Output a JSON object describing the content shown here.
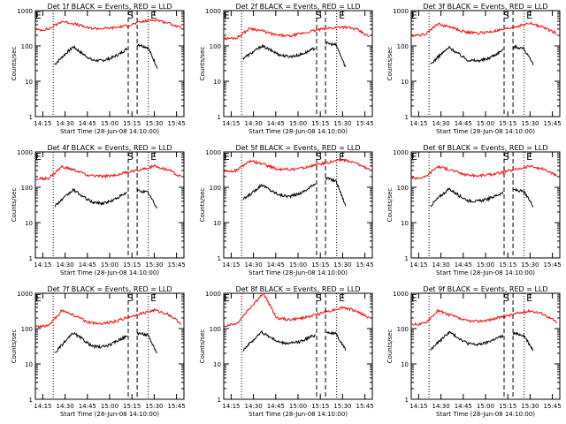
{
  "figure": {
    "title_template": "Det {det} BLACK = Events, RED = LLD",
    "xlabel": "Start Time (28-Jun-08 14:10:00)",
    "ylabel": "Counts/sec",
    "x_ticks": [
      "14:15",
      "14:30",
      "14:45",
      "15:00",
      "15:15",
      "15:30",
      "15:45"
    ],
    "y_ticks": [
      "1",
      "10",
      "100",
      "1000"
    ],
    "markers": {
      "start_label": "S",
      "end_label": "E"
    },
    "colors": {
      "events": "#000000",
      "lld": "#ff0000",
      "axis": "#000000"
    }
  },
  "chart_data": [
    {
      "type": "line",
      "title": "Det 1f BLACK = Events, RED = LLD",
      "xlabel": "Start Time (28-Jun-08 14:10:00)",
      "ylabel": "Counts/sec",
      "xlim": [
        14.15,
        15.5
      ],
      "ylim": [
        1,
        1000
      ],
      "yscale": "log",
      "series": [
        {
          "name": "Events",
          "color": "#000000",
          "base": [
            30,
            55,
            95,
            60,
            40,
            38,
            45,
            60,
            95,
            110,
            90,
            25
          ]
        },
        {
          "name": "LLD",
          "color": "#ff0000",
          "base": [
            280,
            300,
            500,
            420,
            320,
            310,
            330,
            380,
            480,
            560,
            450,
            330
          ]
        }
      ],
      "markers": [
        {
          "label": "E",
          "x": 14.17
        },
        {
          "label": "S",
          "x": 15.22
        },
        {
          "label": "E",
          "x": 15.32
        }
      ]
    },
    {
      "type": "line",
      "title": "Det 2f BLACK = Events, RED = LLD",
      "xlabel": "Start Time (28-Jun-08 14:10:00)",
      "ylabel": "Counts/sec",
      "xlim": [
        14.15,
        15.5
      ],
      "ylim": [
        1,
        1000
      ],
      "yscale": "log",
      "series": [
        {
          "name": "Events",
          "color": "#000000",
          "base": [
            45,
            65,
            100,
            75,
            55,
            50,
            55,
            70,
            95,
            120,
            105,
            25
          ]
        },
        {
          "name": "LLD",
          "color": "#ff0000",
          "base": [
            160,
            170,
            320,
            260,
            200,
            190,
            230,
            280,
            320,
            350,
            300,
            180
          ]
        }
      ],
      "markers": [
        {
          "label": "E",
          "x": 14.17
        },
        {
          "label": "S",
          "x": 15.22
        },
        {
          "label": "E",
          "x": 15.32
        }
      ]
    },
    {
      "type": "line",
      "title": "Det 3f BLACK = Events, RED = LLD",
      "xlabel": "Start Time (28-Jun-08 14:10:00)",
      "ylabel": "Counts/sec",
      "xlim": [
        14.15,
        15.5
      ],
      "ylim": [
        1,
        1000
      ],
      "yscale": "log",
      "series": [
        {
          "name": "Events",
          "color": "#000000",
          "base": [
            30,
            55,
            90,
            60,
            40,
            38,
            42,
            58,
            85,
            95,
            85,
            30
          ]
        },
        {
          "name": "LLD",
          "color": "#ff0000",
          "base": [
            200,
            210,
            420,
            340,
            250,
            230,
            250,
            290,
            360,
            440,
            330,
            230
          ]
        }
      ],
      "markers": [
        {
          "label": "E",
          "x": 14.17
        },
        {
          "label": "S",
          "x": 15.22
        },
        {
          "label": "E",
          "x": 15.32
        }
      ]
    },
    {
      "type": "line",
      "title": "Det 4f BLACK = Events, RED = LLD",
      "xlabel": "Start Time (28-Jun-08 14:10:00)",
      "ylabel": "Counts/sec",
      "xlim": [
        14.15,
        15.5
      ],
      "ylim": [
        1,
        1000
      ],
      "yscale": "log",
      "series": [
        {
          "name": "Events",
          "color": "#000000",
          "base": [
            30,
            50,
            85,
            55,
            38,
            35,
            40,
            55,
            75,
            80,
            72,
            25
          ]
        },
        {
          "name": "LLD",
          "color": "#ff0000",
          "base": [
            170,
            180,
            380,
            300,
            220,
            200,
            220,
            270,
            320,
            400,
            320,
            200
          ]
        }
      ],
      "markers": [
        {
          "label": "E",
          "x": 14.17
        },
        {
          "label": "S",
          "x": 15.22
        },
        {
          "label": "E",
          "x": 15.32
        }
      ]
    },
    {
      "type": "line",
      "title": "Det 5f BLACK = Events, RED = LLD",
      "xlabel": "Start Time (28-Jun-08 14:10:00)",
      "ylabel": "Counts/sec",
      "xlim": [
        14.15,
        15.5
      ],
      "ylim": [
        1,
        1000
      ],
      "yscale": "log",
      "series": [
        {
          "name": "Events",
          "color": "#000000",
          "base": [
            45,
            70,
            120,
            80,
            60,
            55,
            65,
            90,
            150,
            180,
            150,
            30
          ]
        },
        {
          "name": "LLD",
          "color": "#ff0000",
          "base": [
            280,
            300,
            560,
            450,
            330,
            320,
            350,
            430,
            520,
            600,
            480,
            330
          ]
        }
      ],
      "markers": [
        {
          "label": "E",
          "x": 14.17
        },
        {
          "label": "S",
          "x": 15.22
        },
        {
          "label": "E",
          "x": 15.32
        }
      ]
    },
    {
      "type": "line",
      "title": "Det 6f BLACK = Events, RED = LLD",
      "xlabel": "Start Time (28-Jun-08 14:10:00)",
      "ylabel": "Counts/sec",
      "xlim": [
        14.15,
        15.5
      ],
      "ylim": [
        1,
        1000
      ],
      "yscale": "log",
      "series": [
        {
          "name": "Events",
          "color": "#000000",
          "base": [
            30,
            55,
            90,
            60,
            42,
            40,
            45,
            58,
            75,
            85,
            75,
            30
          ]
        },
        {
          "name": "LLD",
          "color": "#ff0000",
          "base": [
            180,
            190,
            390,
            310,
            230,
            210,
            230,
            270,
            330,
            400,
            320,
            210
          ]
        }
      ],
      "markers": [
        {
          "label": "E",
          "x": 14.17
        },
        {
          "label": "S",
          "x": 15.22
        },
        {
          "label": "E",
          "x": 15.32
        }
      ]
    },
    {
      "type": "line",
      "title": "Det 7f BLACK = Events, RED = LLD",
      "xlabel": "Start Time (28-Jun-08 14:10:00)",
      "ylabel": "Counts/sec",
      "xlim": [
        14.15,
        15.5
      ],
      "ylim": [
        1,
        1000
      ],
      "yscale": "log",
      "series": [
        {
          "name": "Events",
          "color": "#000000",
          "base": [
            20,
            40,
            75,
            50,
            32,
            30,
            35,
            50,
            65,
            75,
            65,
            20
          ]
        },
        {
          "name": "LLD",
          "color": "#ff0000",
          "base": [
            110,
            120,
            330,
            230,
            150,
            140,
            160,
            210,
            270,
            330,
            260,
            140
          ]
        }
      ],
      "markers": [
        {
          "label": "E",
          "x": 14.17
        },
        {
          "label": "S",
          "x": 15.22
        },
        {
          "label": "E",
          "x": 15.32
        }
      ]
    },
    {
      "type": "line",
      "title": "Det 8f BLACK = Events, RED = LLD",
      "xlabel": "Start Time (28-Jun-08 14:10:00)",
      "ylabel": "Counts/sec",
      "xlim": [
        14.15,
        15.5
      ],
      "ylim": [
        1,
        1000
      ],
      "yscale": "log",
      "series": [
        {
          "name": "Events",
          "color": "#000000",
          "base": [
            25,
            45,
            80,
            55,
            40,
            38,
            42,
            55,
            70,
            80,
            70,
            25
          ]
        },
        {
          "name": "LLD",
          "color": "#ff0000",
          "base": [
            120,
            140,
            400,
            1000,
            200,
            180,
            200,
            250,
            320,
            400,
            320,
            200
          ]
        }
      ],
      "markers": [
        {
          "label": "E",
          "x": 14.17
        },
        {
          "label": "S",
          "x": 15.22
        },
        {
          "label": "E",
          "x": 15.32
        }
      ]
    },
    {
      "type": "line",
      "title": "Det 9f BLACK = Events, RED = LLD",
      "xlabel": "Start Time (28-Jun-08 14:10:00)",
      "ylabel": "Counts/sec",
      "xlim": [
        14.15,
        15.5
      ],
      "ylim": [
        1,
        1000
      ],
      "yscale": "log",
      "series": [
        {
          "name": "Events",
          "color": "#000000",
          "base": [
            25,
            45,
            80,
            55,
            38,
            35,
            40,
            52,
            65,
            72,
            65,
            25
          ]
        },
        {
          "name": "LLD",
          "color": "#ff0000",
          "base": [
            130,
            140,
            320,
            240,
            170,
            160,
            180,
            220,
            270,
            320,
            260,
            150
          ]
        }
      ],
      "markers": [
        {
          "label": "E",
          "x": 14.17
        },
        {
          "label": "S",
          "x": 15.22
        },
        {
          "label": "E",
          "x": 15.32
        }
      ]
    }
  ]
}
